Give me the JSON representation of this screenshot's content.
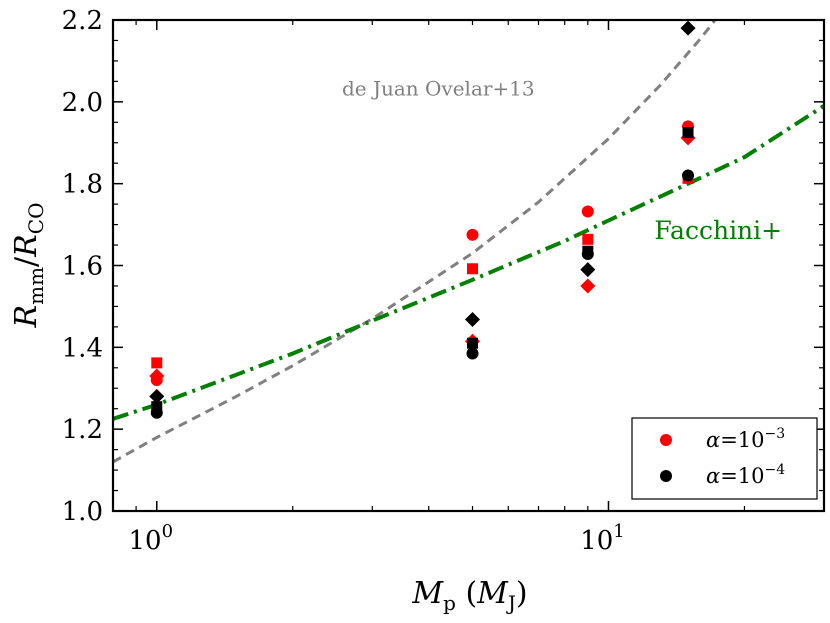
{
  "chart_data": {
    "type": "scatter",
    "xscale": "log",
    "xlim": [
      0.8,
      30
    ],
    "ylim": [
      1.0,
      2.2
    ],
    "xlabel_main": "M",
    "xlabel_sub": "p",
    "xlabel_paren_main": "M",
    "xlabel_paren_sub": "J",
    "ylabel_num": "R",
    "ylabel_num_sub": "mm",
    "ylabel_den": "R",
    "ylabel_den_sub": "CO",
    "x_tick_base": "10",
    "x_ticks": [
      {
        "value": 1,
        "exp": "0"
      },
      {
        "value": 10,
        "exp": "1"
      }
    ],
    "y_ticks": [
      1.0,
      1.2,
      1.4,
      1.6,
      1.8,
      2.0,
      2.2
    ],
    "y_tick_labels": [
      "1.0",
      "1.2",
      "1.4",
      "1.6",
      "1.8",
      "2.0",
      "2.2"
    ],
    "grid": false,
    "colors": {
      "red": "#ff0000",
      "black": "#000000",
      "green": "#008000",
      "gray": "#808080"
    },
    "series": [
      {
        "group": "alpha-1e-3",
        "marker": "circle",
        "color": "#ff0000",
        "x": [
          1,
          5,
          9,
          15
        ],
        "y": [
          1.32,
          1.675,
          1.732,
          1.94
        ]
      },
      {
        "group": "alpha-1e-3",
        "marker": "square",
        "color": "#ff0000",
        "x": [
          1,
          5,
          9,
          15
        ],
        "y": [
          1.362,
          1.592,
          1.664,
          1.813
        ]
      },
      {
        "group": "alpha-1e-3",
        "marker": "diamond",
        "color": "#ff0000",
        "x": [
          1,
          5,
          9,
          15
        ],
        "y": [
          1.33,
          1.415,
          1.55,
          1.912
        ]
      },
      {
        "group": "alpha-1e-4",
        "marker": "circle",
        "color": "#000000",
        "x": [
          1,
          5,
          9,
          15
        ],
        "y": [
          1.24,
          1.385,
          1.628,
          1.82
        ]
      },
      {
        "group": "alpha-1e-4",
        "marker": "square",
        "color": "#000000",
        "x": [
          1,
          5,
          9,
          15
        ],
        "y": [
          1.255,
          1.41,
          1.635,
          1.925
        ]
      },
      {
        "group": "alpha-1e-4",
        "marker": "diamond",
        "color": "#000000",
        "x": [
          1,
          5,
          9,
          15
        ],
        "y": [
          1.28,
          1.468,
          1.59,
          2.18
        ]
      }
    ],
    "curves": [
      {
        "label": "de Juan Ovelar+13",
        "color": "#808080",
        "style": "dashed",
        "x": [
          0.8,
          1,
          1.5,
          2,
          3,
          5,
          7,
          10,
          13,
          16,
          17.5
        ],
        "y": [
          1.12,
          1.18,
          1.28,
          1.355,
          1.47,
          1.63,
          1.755,
          1.91,
          2.04,
          2.155,
          2.21
        ]
      },
      {
        "label": "Facchini+",
        "color": "#008000",
        "style": "dashdot",
        "x": [
          0.8,
          1,
          2,
          3,
          5,
          8,
          10,
          15,
          20,
          30
        ],
        "y": [
          1.225,
          1.26,
          1.385,
          1.465,
          1.565,
          1.66,
          1.71,
          1.8,
          1.865,
          1.99
        ]
      }
    ],
    "annotations": [
      {
        "text": "de Juan Ovelar+13",
        "color": "#808080",
        "x": 4.2,
        "y": 2.015
      },
      {
        "text": "Facchini+",
        "color": "#008000",
        "x": 17.5,
        "y": 1.665
      }
    ],
    "legend": {
      "position": "lower-right",
      "entries": [
        {
          "color": "#ff0000",
          "symbol": "α",
          "eq": "=",
          "base": "10",
          "exp": "−3"
        },
        {
          "color": "#000000",
          "symbol": "α",
          "eq": "=",
          "base": "10",
          "exp": "−4"
        }
      ]
    }
  }
}
